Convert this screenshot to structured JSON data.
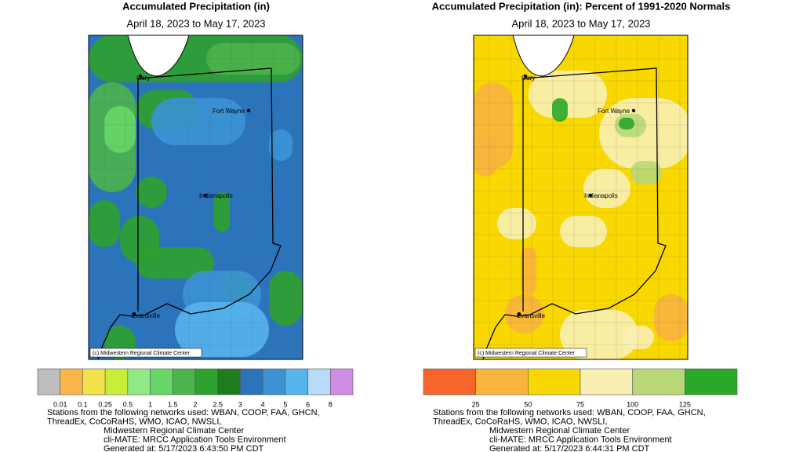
{
  "panels": [
    {
      "title": "Accumulated Precipitation (in)",
      "subtitle": "April 18, 2023 to May 17, 2023",
      "cities": [
        "Gary",
        "Fort Wayne",
        "Indianapolis",
        "Evansville"
      ],
      "credit": "(c) Midwestern Regional Climate Center",
      "legend": {
        "colors": [
          "#bdbdbd",
          "#f7b54a",
          "#f2e24a",
          "#c9ee3a",
          "#8fea86",
          "#67d666",
          "#4db34d",
          "#2ea22e",
          "#1f7d1f",
          "#2b74bb",
          "#3b93d6",
          "#57b3ec",
          "#b7dbf8",
          "#cf8ce6"
        ],
        "labels": [
          "0.01",
          "0.1",
          "0.25",
          "0.5",
          "1",
          "1.5",
          "2",
          "2.5",
          "3",
          "4",
          "5",
          "6",
          "8"
        ]
      },
      "footer": [
        "Stations from the following networks used: WBAN, COOP, FAA, GHCN,",
        "ThreadEx, CoCoRaHS, WMO, ICAO, NWSLI,",
        "Midwestern Regional Climate Center",
        "cli-MATE: MRCC Application Tools Environment",
        "Generated at: 5/17/2023 6:43:50 PM CDT"
      ]
    },
    {
      "title": "Accumulated Precipitation (in): Percent of 1991-2020 Normals",
      "subtitle": "April 18, 2023 to May 17, 2023",
      "cities": [
        "Gary",
        "Fort Wayne",
        "Indianapolis",
        "Evansville"
      ],
      "credit": "(c) Midwestern Regional Climate Center",
      "legend": {
        "colors": [
          "#f8652a",
          "#f8b43e",
          "#f8d800",
          "#f8f0b2",
          "#b8d878",
          "#29a829"
        ],
        "labels": [
          "25",
          "50",
          "75",
          "100",
          "125"
        ]
      },
      "footer": [
        "Stations from the following networks used: WBAN, COOP, FAA, GHCN,",
        "ThreadEx, CoCoRaHS, WMO, ICAO, NWSLI,",
        "Midwestern Regional Climate Center",
        "cli-MATE: MRCC Application Tools Environment",
        "Generated at: 5/17/2023 6:44:31 PM CDT"
      ]
    }
  ]
}
